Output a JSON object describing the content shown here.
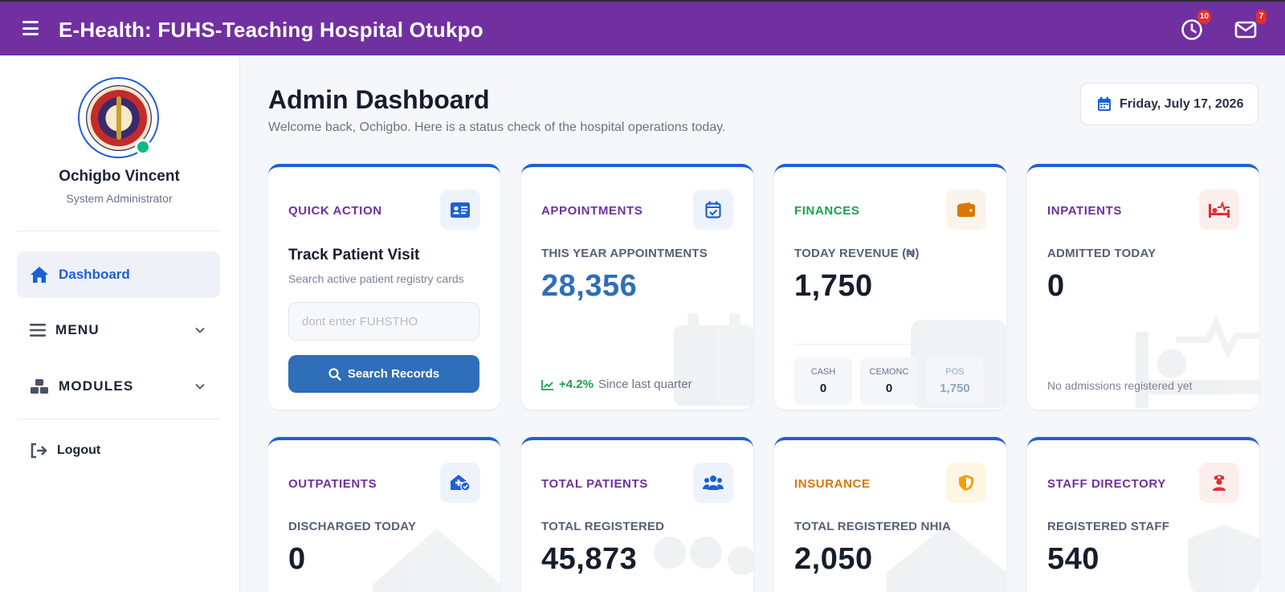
{
  "header": {
    "title": "E-Health: FUHS-Teaching Hospital Otukpo",
    "clock_badge": "10",
    "mail_badge": "7"
  },
  "sidebar": {
    "user_name": "Ochigbo Vincent",
    "user_role": "System Administrator",
    "items": [
      {
        "label": "Dashboard",
        "icon": "home-icon"
      },
      {
        "label": "MENU",
        "icon": "list-icon"
      },
      {
        "label": "MODULES",
        "icon": "cubes-icon"
      },
      {
        "label": "Logout",
        "icon": "logout-icon"
      }
    ]
  },
  "main": {
    "title": "Admin Dashboard",
    "subtitle": "Welcome back, Ochigbo. Here is a status check of the hospital operations today.",
    "date": "Friday, July 17, 2026"
  },
  "cards": {
    "quick_action": {
      "label": "QUICK ACTION",
      "title": "Track Patient Visit",
      "subtitle": "Search active patient registry cards",
      "input_placeholder": "dont enter FUHSTHO",
      "button_label": "Search Records"
    },
    "appointments": {
      "label": "APPOINTMENTS",
      "sub": "THIS YEAR APPOINTMENTS",
      "value": "28,356",
      "trend": "+4.2%",
      "trend_note": "Since last quarter"
    },
    "finances": {
      "label": "FINANCES",
      "sub": "TODAY REVENUE (₦)",
      "value": "1,750",
      "split": [
        {
          "label": "CASH",
          "value": "0"
        },
        {
          "label": "CEMONC",
          "value": "0"
        },
        {
          "label": "POS",
          "value": "1,750"
        }
      ]
    },
    "inpatients": {
      "label": "INPATIENTS",
      "sub": "ADMITTED TODAY",
      "value": "0",
      "note": "No admissions registered yet"
    },
    "outpatients": {
      "label": "OUTPATIENTS",
      "sub": "DISCHARGED TODAY",
      "value": "0"
    },
    "total_patients": {
      "label": "TOTAL PATIENTS",
      "sub": "TOTAL REGISTERED",
      "value": "45,873"
    },
    "insurance": {
      "label": "INSURANCE",
      "sub": "TOTAL REGISTERED NHIA",
      "value": "2,050"
    },
    "staff": {
      "label": "STAFF DIRECTORY",
      "sub": "REGISTERED STAFF",
      "value": "540"
    }
  },
  "colors": {
    "header": "#7030a0",
    "accent_blue": "#1f5fd6",
    "label_purple": "#7030a0",
    "label_green": "#16a34a",
    "label_orange": "#d97706",
    "value_blue": "#2f6eb8"
  }
}
